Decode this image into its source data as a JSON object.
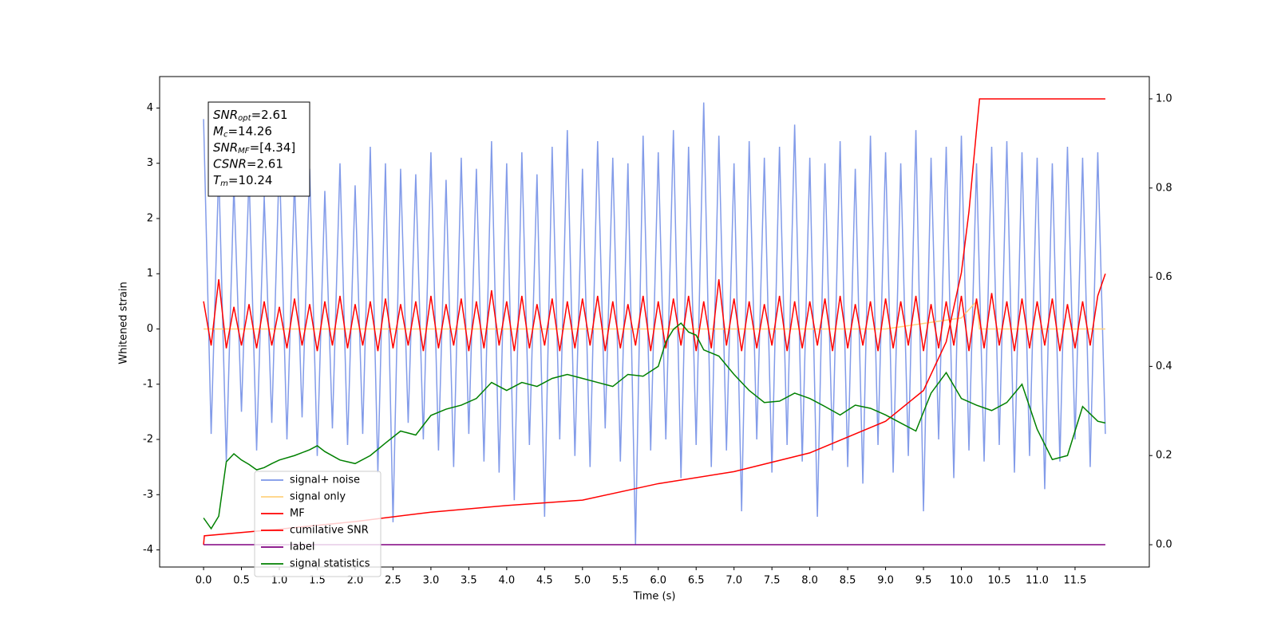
{
  "chart_data": {
    "type": "line",
    "xlabel": "Time (s)",
    "ylabel": "Whitened strain",
    "annotations": [
      {
        "symbol": "SNR",
        "subscript": "opt",
        "text": "=2.61"
      },
      {
        "symbol": "M",
        "subscript": "c",
        "text": "=14.26"
      },
      {
        "symbol": "SNR",
        "subscript": "MF",
        "text": "=[4.34]"
      },
      {
        "symbol": "CSNR",
        "subscript": "",
        "text": "=2.61"
      },
      {
        "symbol": "T",
        "subscript": "m",
        "text": "=10.24"
      }
    ],
    "x": [
      0,
      0.1,
      0.2,
      0.3,
      0.4,
      0.5,
      0.6,
      0.7,
      0.8,
      0.9,
      1,
      1.1,
      1.2,
      1.3,
      1.4,
      1.5,
      1.6,
      1.7,
      1.8,
      1.9,
      2,
      2.1,
      2.2,
      2.3,
      2.4,
      2.5,
      2.6,
      2.7,
      2.8,
      2.9,
      3,
      3.1,
      3.2,
      3.3,
      3.4,
      3.5,
      3.6,
      3.7,
      3.8,
      3.9,
      4,
      4.1,
      4.2,
      4.3,
      4.4,
      4.5,
      4.6,
      4.7,
      4.8,
      4.9,
      5,
      5.1,
      5.2,
      5.3,
      5.4,
      5.5,
      5.6,
      5.7,
      5.8,
      5.9,
      6,
      6.1,
      6.2,
      6.3,
      6.4,
      6.5,
      6.6,
      6.7,
      6.8,
      6.9,
      7,
      7.1,
      7.2,
      7.3,
      7.4,
      7.5,
      7.6,
      7.7,
      7.8,
      7.9,
      8,
      8.1,
      8.2,
      8.3,
      8.4,
      8.5,
      8.6,
      8.7,
      8.8,
      8.9,
      9,
      9.1,
      9.2,
      9.3,
      9.4,
      9.5,
      9.6,
      9.7,
      9.8,
      9.9,
      10,
      10.1,
      10.2,
      10.3,
      10.4,
      10.5,
      10.6,
      10.7,
      10.8,
      10.9,
      11,
      11.1,
      11.2,
      11.3,
      11.4,
      11.5,
      11.6,
      11.7,
      11.8,
      11.9
    ],
    "series": [
      {
        "name": "signal+ noise",
        "color": "#7b96e8",
        "axis": "y",
        "values": [
          3.8,
          -1.9,
          2.9,
          -2.4,
          2.6,
          -1.5,
          2.8,
          -2.2,
          2.4,
          -1.7,
          3.1,
          -2.0,
          2.7,
          -1.6,
          2.9,
          -2.3,
          2.5,
          -1.8,
          3.0,
          -2.1,
          2.6,
          -1.9,
          3.3,
          -2.6,
          3.0,
          -3.5,
          2.9,
          -1.7,
          2.8,
          -2.0,
          3.2,
          -2.2,
          2.7,
          -2.5,
          3.1,
          -1.9,
          2.9,
          -2.4,
          3.4,
          -2.6,
          3.0,
          -3.1,
          3.2,
          -2.1,
          2.8,
          -3.4,
          3.3,
          -2.0,
          3.6,
          -2.3,
          2.9,
          -2.5,
          3.4,
          -1.8,
          3.1,
          -2.4,
          3.0,
          -3.9,
          3.5,
          -2.2,
          3.2,
          -2.0,
          3.6,
          -2.7,
          3.3,
          -2.1,
          4.1,
          -2.5,
          3.5,
          -2.2,
          3.0,
          -3.3,
          3.4,
          -2.0,
          3.1,
          -2.6,
          3.3,
          -2.1,
          3.7,
          -2.4,
          3.1,
          -3.4,
          3.0,
          -2.2,
          3.4,
          -2.5,
          2.9,
          -2.8,
          3.5,
          -2.1,
          3.2,
          -2.6,
          3.0,
          -2.3,
          3.6,
          -3.3,
          3.1,
          -2.0,
          3.3,
          -2.7,
          3.5,
          -2.2,
          3.0,
          -2.4,
          3.3,
          -2.1,
          3.4,
          -2.6,
          3.2,
          -2.3,
          3.1,
          -2.9,
          3.0,
          -2.4,
          3.3,
          -2.0,
          3.1,
          -2.5,
          3.2,
          -1.9
        ]
      },
      {
        "name": "signal only",
        "color": "#ffd27f",
        "axis": "y",
        "x": [
          0,
          9.0,
          10.0,
          10.2,
          10.24,
          11.9
        ],
        "values": [
          0,
          0,
          0.2,
          0.5,
          0,
          0
        ]
      },
      {
        "name": "MF",
        "color": "#ff0000",
        "axis": "y",
        "values": [
          0.5,
          -0.3,
          0.9,
          -0.35,
          0.4,
          -0.3,
          0.45,
          -0.35,
          0.5,
          -0.3,
          0.4,
          -0.35,
          0.55,
          -0.3,
          0.45,
          -0.4,
          0.5,
          -0.3,
          0.6,
          -0.35,
          0.45,
          -0.3,
          0.5,
          -0.4,
          0.55,
          -0.35,
          0.45,
          -0.3,
          0.5,
          -0.4,
          0.6,
          -0.35,
          0.45,
          -0.3,
          0.55,
          -0.4,
          0.5,
          -0.35,
          0.7,
          -0.3,
          0.5,
          -0.4,
          0.6,
          -0.35,
          0.45,
          -0.3,
          0.55,
          -0.4,
          0.5,
          -0.35,
          0.55,
          -0.3,
          0.6,
          -0.4,
          0.5,
          -0.35,
          0.45,
          -0.3,
          0.6,
          -0.4,
          0.5,
          -0.35,
          0.55,
          -0.3,
          0.6,
          -0.4,
          0.5,
          -0.35,
          0.9,
          -0.3,
          0.55,
          -0.4,
          0.5,
          -0.35,
          0.45,
          -0.3,
          0.6,
          -0.4,
          0.5,
          -0.35,
          0.5,
          -0.3,
          0.55,
          -0.4,
          0.6,
          -0.35,
          0.45,
          -0.3,
          0.5,
          -0.4,
          0.55,
          -0.35,
          0.5,
          -0.3,
          0.6,
          -0.4,
          0.45,
          -0.35,
          0.5,
          -0.3,
          0.6,
          -0.4,
          0.55,
          -0.35,
          0.65,
          -0.3,
          0.5,
          -0.4,
          0.55,
          -0.35,
          0.5,
          -0.3,
          0.55,
          -0.4,
          0.45,
          -0.35,
          0.5,
          -0.3,
          0.6,
          1.0
        ]
      },
      {
        "name": "cumilative SNR",
        "color": "#ff0000",
        "axis": "y2",
        "x": [
          0,
          0.01,
          1,
          2,
          3,
          4,
          5,
          6,
          7,
          8,
          9,
          9.5,
          9.8,
          10,
          10.1,
          10.2,
          10.24,
          11.9
        ],
        "values": [
          0.0,
          0.02,
          0.035,
          0.052,
          0.073,
          0.088,
          0.1,
          0.137,
          0.164,
          0.206,
          0.277,
          0.346,
          0.455,
          0.61,
          0.747,
          0.93,
          1.0,
          1.0
        ]
      },
      {
        "name": "label",
        "color": "#800080",
        "axis": "y2",
        "x": [
          0,
          11.9
        ],
        "values": [
          0,
          0
        ]
      },
      {
        "name": "signal statistics",
        "color": "#008000",
        "axis": "y2",
        "x": [
          0,
          0.1,
          0.2,
          0.3,
          0.4,
          0.5,
          0.6,
          0.7,
          0.8,
          0.9,
          1.0,
          1.2,
          1.4,
          1.5,
          1.6,
          1.8,
          2.0,
          2.2,
          2.4,
          2.6,
          2.8,
          3.0,
          3.2,
          3.4,
          3.6,
          3.8,
          4.0,
          4.2,
          4.4,
          4.6,
          4.8,
          5.0,
          5.2,
          5.4,
          5.6,
          5.8,
          6.0,
          6.1,
          6.2,
          6.3,
          6.4,
          6.5,
          6.6,
          6.8,
          7.0,
          7.2,
          7.4,
          7.6,
          7.8,
          8.0,
          8.2,
          8.4,
          8.6,
          8.8,
          9.0,
          9.2,
          9.4,
          9.6,
          9.8,
          10.0,
          10.2,
          10.4,
          10.6,
          10.8,
          11.0,
          11.2,
          11.4,
          11.6,
          11.8,
          11.9
        ],
        "values": [
          0.06,
          0.036,
          0.064,
          0.186,
          0.204,
          0.19,
          0.18,
          0.168,
          0.173,
          0.182,
          0.19,
          0.2,
          0.213,
          0.222,
          0.209,
          0.19,
          0.182,
          0.2,
          0.228,
          0.255,
          0.246,
          0.29,
          0.304,
          0.313,
          0.328,
          0.364,
          0.346,
          0.364,
          0.355,
          0.373,
          0.382,
          0.373,
          0.364,
          0.355,
          0.382,
          0.378,
          0.4,
          0.455,
          0.483,
          0.497,
          0.477,
          0.47,
          0.437,
          0.423,
          0.382,
          0.346,
          0.319,
          0.322,
          0.34,
          0.328,
          0.31,
          0.291,
          0.313,
          0.306,
          0.291,
          0.273,
          0.255,
          0.34,
          0.386,
          0.328,
          0.313,
          0.301,
          0.319,
          0.36,
          0.259,
          0.191,
          0.2,
          0.31,
          0.277,
          0.273
        ]
      }
    ],
    "xlim": [
      -0.58,
      12.48
    ],
    "ylim": [
      -4.31,
      4.57
    ],
    "y2lim": [
      -0.05,
      1.05
    ],
    "xticks": [
      {
        "value": 0,
        "label": "0.0"
      },
      0.5,
      {
        "value": 1,
        "label": "1.0"
      },
      1.5,
      {
        "value": 2,
        "label": "2.0"
      },
      2.5,
      {
        "value": 3,
        "label": "3.0"
      },
      3.5,
      {
        "value": 4,
        "label": "4.0"
      },
      4.5,
      {
        "value": 5,
        "label": "5.0"
      },
      5.5,
      {
        "value": 6,
        "label": "6.0"
      },
      6.5,
      {
        "value": 7,
        "label": "7.0"
      },
      7.5,
      {
        "value": 8,
        "label": "8.0"
      },
      8.5,
      {
        "value": 9,
        "label": "9.0"
      },
      9.5,
      {
        "value": 10,
        "label": "10.0"
      },
      10.5,
      {
        "value": 11,
        "label": "11.0"
      },
      11.5
    ],
    "yticks": [
      -4,
      -3,
      -2,
      -1,
      0,
      1,
      2,
      3,
      4
    ],
    "y2ticks": [
      {
        "value": 0,
        "label": "0.0"
      },
      0.2,
      0.4,
      0.6,
      0.8,
      {
        "value": 1,
        "label": "1.0"
      }
    ],
    "legend_loc": "lower left"
  }
}
